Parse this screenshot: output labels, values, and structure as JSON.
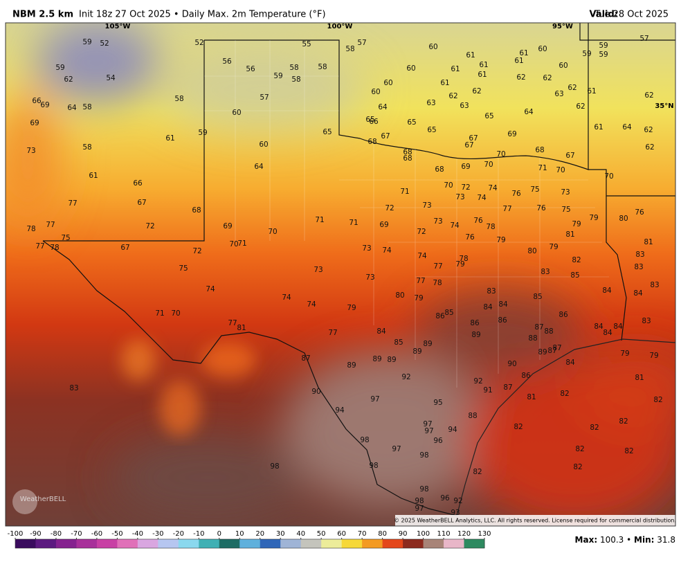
{
  "header": {
    "model": "NBM 2.5 km",
    "description": "Init 18z 27 Oct 2025 • Daily Max. 2m Temperature (°F)",
    "valid_label": "Valid:",
    "valid_date": "Tue 28 Oct 2025"
  },
  "map": {
    "lon_labels": [
      "105°W",
      "100°W",
      "95°W"
    ],
    "lat_labels": [
      "35°N"
    ],
    "logo": "WeatherBELL",
    "copyright": "© 2025 WeatherBELL Analytics, LLC. All rights reserved. License required for commercial distribution.",
    "station_values": [
      59,
      52,
      52,
      55,
      57,
      58,
      60,
      61,
      61,
      60,
      61,
      59,
      59,
      59,
      57,
      59,
      62,
      54,
      56,
      56,
      59,
      58,
      58,
      58,
      60,
      61,
      61,
      61,
      62,
      62,
      60,
      63,
      62,
      61,
      62,
      66,
      69,
      64,
      58,
      58,
      57,
      60,
      60,
      61,
      62,
      62,
      63,
      63,
      62,
      69,
      60,
      64,
      65,
      66,
      65,
      65,
      64,
      61,
      64,
      62,
      73,
      58,
      61,
      59,
      60,
      65,
      67,
      65,
      67,
      69,
      62,
      68,
      68,
      68,
      67,
      70,
      70,
      69,
      68,
      67,
      64,
      68,
      71,
      70,
      70,
      61,
      66,
      77,
      67,
      72,
      68,
      71,
      70,
      72,
      74,
      76,
      75,
      73,
      73,
      74,
      78,
      77,
      75,
      77,
      78,
      67,
      69,
      70,
      71,
      71,
      72,
      73,
      69,
      72,
      73,
      74,
      77,
      76,
      75,
      76,
      80,
      79,
      79,
      70,
      71,
      72,
      75,
      73,
      74,
      76,
      78,
      76,
      79,
      81,
      80,
      79,
      83,
      81,
      73,
      74,
      77,
      79,
      78,
      82,
      83,
      73,
      77,
      78,
      83,
      85,
      83,
      74,
      74,
      74,
      79,
      80,
      79,
      83,
      84,
      84,
      85,
      84,
      84,
      86,
      85,
      86,
      86,
      86,
      71,
      70,
      77,
      81,
      77,
      84,
      87,
      88,
      84,
      84,
      84,
      83,
      89,
      88,
      85,
      89,
      89,
      87,
      89,
      89,
      89,
      89,
      87,
      87,
      84,
      90,
      79,
      79,
      83,
      92,
      86,
      81,
      92,
      91,
      87,
      90,
      97,
      95,
      81,
      82,
      82,
      94,
      88,
      97,
      97,
      94,
      96,
      82,
      82,
      82,
      98,
      97,
      98,
      82,
      82,
      98,
      98,
      82,
      82,
      98,
      98,
      96,
      92,
      97,
      93
    ]
  },
  "colorbar": {
    "ticks": [
      -100,
      -90,
      -80,
      -70,
      -60,
      -50,
      -40,
      -30,
      -20,
      -10,
      0,
      10,
      20,
      30,
      40,
      50,
      60,
      70,
      80,
      90,
      100,
      110,
      120,
      130
    ],
    "colors": [
      "#3a0c5e",
      "#5c1a80",
      "#85228f",
      "#a8309a",
      "#c840a4",
      "#e070b8",
      "#d9a6e0",
      "#b6c6f0",
      "#8ad8ee",
      "#3fb0b4",
      "#1d6c64",
      "#5fb0dc",
      "#2f66b8",
      "#9fb4d6",
      "#c4c4bc",
      "#ecec9a",
      "#f6d838",
      "#f39a22",
      "#e4461a",
      "#8c2a1e",
      "#a88478",
      "#e8b6c8",
      "#2e8a60"
    ]
  },
  "stats": {
    "max_label": "Max:",
    "max_value": 100.3,
    "separator": "•",
    "min_label": "Min:",
    "min_value": 31.8
  }
}
